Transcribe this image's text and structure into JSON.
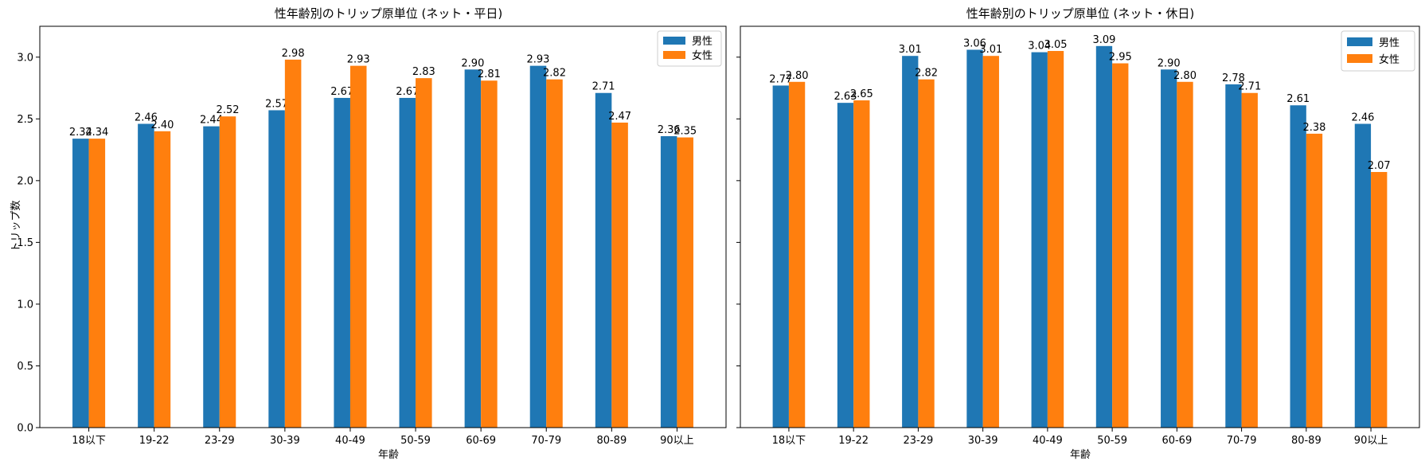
{
  "colors": {
    "male": "#1f77b4",
    "female": "#ff7f0e"
  },
  "chart_data": [
    {
      "type": "bar",
      "title": "性年齢別のトリップ原単位 (ネット・平日)",
      "xlabel": "年齢",
      "ylabel": "トリップ数",
      "ylim": [
        0,
        3.25
      ],
      "yticks": [
        "0.0",
        "0.5",
        "1.0",
        "1.5",
        "2.0",
        "2.5",
        "3.0"
      ],
      "categories": [
        "18以下",
        "19-22",
        "23-29",
        "30-39",
        "40-49",
        "50-59",
        "60-69",
        "70-79",
        "80-89",
        "90以上"
      ],
      "series": [
        {
          "name": "男性",
          "values": [
            2.34,
            2.46,
            2.44,
            2.57,
            2.67,
            2.67,
            2.9,
            2.93,
            2.71,
            2.36
          ],
          "labels": [
            "2.34",
            "2.46",
            "2.44",
            "2.57",
            "2.67",
            "2.67",
            "2.90",
            "2.93",
            "2.71",
            "2.36"
          ]
        },
        {
          "name": "女性",
          "values": [
            2.34,
            2.4,
            2.52,
            2.98,
            2.93,
            2.83,
            2.81,
            2.82,
            2.47,
            2.35
          ],
          "labels": [
            "2.34",
            "2.40",
            "2.52",
            "2.98",
            "2.93",
            "2.83",
            "2.81",
            "2.82",
            "2.47",
            "2.35"
          ]
        }
      ],
      "legend": "top-right",
      "grid": false
    },
    {
      "type": "bar",
      "title": "性年齢別のトリップ原単位 (ネット・休日)",
      "xlabel": "年齢",
      "ylabel": "",
      "ylim": [
        0,
        3.25
      ],
      "yticks": [
        "",
        "",
        "",
        "",
        "",
        "",
        ""
      ],
      "categories": [
        "18以下",
        "19-22",
        "23-29",
        "30-39",
        "40-49",
        "50-59",
        "60-69",
        "70-79",
        "80-89",
        "90以上"
      ],
      "series": [
        {
          "name": "男性",
          "values": [
            2.77,
            2.63,
            3.01,
            3.06,
            3.04,
            3.09,
            2.9,
            2.78,
            2.61,
            2.46
          ],
          "labels": [
            "2.77",
            "2.63",
            "3.01",
            "3.06",
            "3.04",
            "3.09",
            "2.90",
            "2.78",
            "2.61",
            "2.46"
          ]
        },
        {
          "name": "女性",
          "values": [
            2.8,
            2.65,
            2.82,
            3.01,
            3.05,
            2.95,
            2.8,
            2.71,
            2.38,
            2.07
          ],
          "labels": [
            "2.80",
            "2.65",
            "2.82",
            "3.01",
            "3.05",
            "2.95",
            "2.80",
            "2.71",
            "2.38",
            "2.07"
          ]
        }
      ],
      "legend": "top-right",
      "grid": false
    }
  ]
}
